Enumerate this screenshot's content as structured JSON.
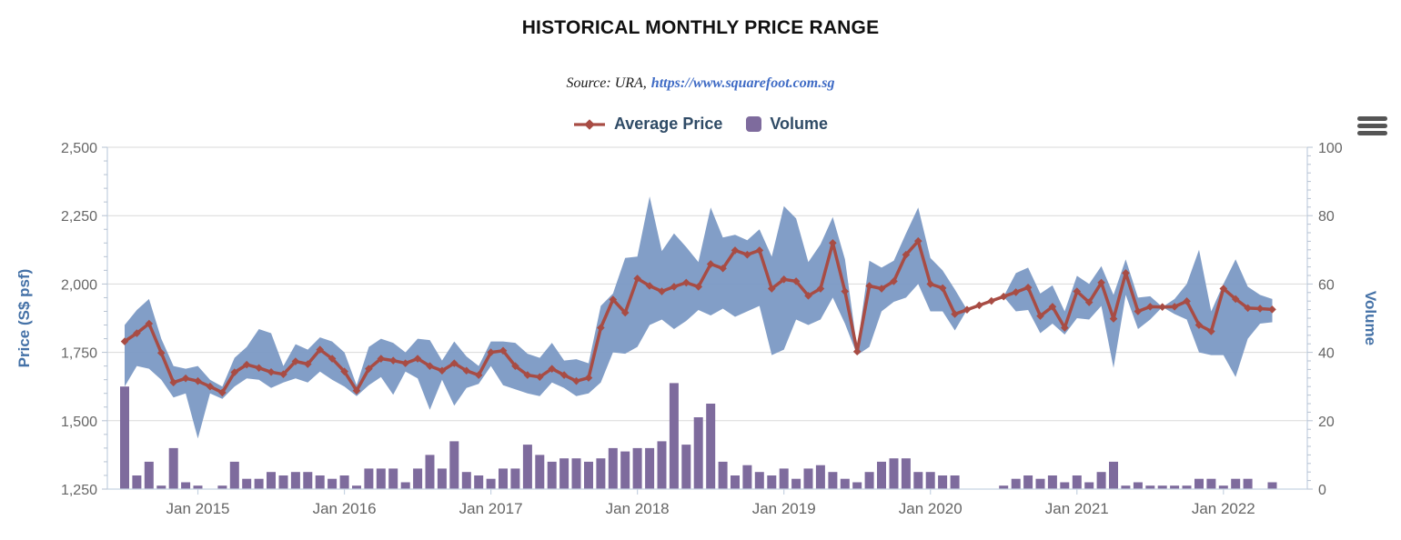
{
  "header": {
    "title": "HISTORICAL MONTHLY PRICE RANGE",
    "subtitle_prefix": "Source: URA,",
    "subtitle_link": "https://www.squarefoot.com.sg"
  },
  "legend": {
    "items": [
      {
        "label": "Average Price",
        "marker": "line-diamond",
        "color": "#a84c44"
      },
      {
        "label": "Volume",
        "marker": "rounded-square",
        "color": "#7e6b9d"
      }
    ]
  },
  "controls": {
    "export_menu_icon": "hamburger-menu"
  },
  "colors": {
    "band": "#7b99c4",
    "line": "#a84c44",
    "column": "#7e6b9d",
    "gridline": "#d9d9d9",
    "axis_line": "#c6d3e2",
    "tick_mark": "#b6c2d2",
    "tick_label": "#666666",
    "axis_title": "#4572a7"
  },
  "chart_data": {
    "type": "combo",
    "title": "HISTORICAL MONTHLY PRICE RANGE",
    "subtitle": "Source: URA, https://www.squarefoot.com.sg",
    "legend_position": "top",
    "grid": true,
    "x_tick_labels": [
      "Jan 2015",
      "Jan 2016",
      "Jan 2017",
      "Jan 2018",
      "Jan 2019",
      "Jan 2020",
      "Jan 2021",
      "Jan 2022"
    ],
    "y_left": {
      "title": "Price (S$ psf)",
      "min": 1250,
      "max": 2500,
      "tick_interval": 250,
      "tick_labels": [
        "1,250",
        "1,500",
        "1,750",
        "2,000",
        "2,250",
        "2,500"
      ]
    },
    "y_right": {
      "title": "Volume",
      "min": 0,
      "max": 100,
      "tick_interval": 20,
      "tick_labels": [
        "0",
        "20",
        "40",
        "60",
        "80",
        "100"
      ]
    },
    "months": [
      "Jul 2014",
      "Aug 2014",
      "Sep 2014",
      "Oct 2014",
      "Nov 2014",
      "Dec 2014",
      "Jan 2015",
      "Feb 2015",
      "Mar 2015",
      "Apr 2015",
      "May 2015",
      "Jun 2015",
      "Jul 2015",
      "Aug 2015",
      "Sep 2015",
      "Oct 2015",
      "Nov 2015",
      "Dec 2015",
      "Jan 2016",
      "Feb 2016",
      "Mar 2016",
      "Apr 2016",
      "May 2016",
      "Jun 2016",
      "Jul 2016",
      "Aug 2016",
      "Sep 2016",
      "Oct 2016",
      "Nov 2016",
      "Dec 2016",
      "Jan 2017",
      "Feb 2017",
      "Mar 2017",
      "Apr 2017",
      "May 2017",
      "Jun 2017",
      "Jul 2017",
      "Aug 2017",
      "Sep 2017",
      "Oct 2017",
      "Nov 2017",
      "Dec 2017",
      "Jan 2018",
      "Feb 2018",
      "Mar 2018",
      "Apr 2018",
      "May 2018",
      "Jun 2018",
      "Jul 2018",
      "Aug 2018",
      "Sep 2018",
      "Oct 2018",
      "Nov 2018",
      "Dec 2018",
      "Jan 2019",
      "Feb 2019",
      "Mar 2019",
      "Apr 2019",
      "May 2019",
      "Jun 2019",
      "Jul 2019",
      "Aug 2019",
      "Sep 2019",
      "Oct 2019",
      "Nov 2019",
      "Dec 2019",
      "Jan 2020",
      "Feb 2020",
      "Mar 2020",
      "Apr 2020",
      "May 2020",
      "Jun 2020",
      "Jul 2020",
      "Aug 2020",
      "Sep 2020",
      "Oct 2020",
      "Nov 2020",
      "Dec 2020",
      "Jan 2021",
      "Feb 2021",
      "Mar 2021",
      "Apr 2021",
      "May 2021",
      "Jun 2021",
      "Jul 2021",
      "Aug 2021",
      "Sep 2021",
      "Oct 2021",
      "Nov 2021",
      "Dec 2021",
      "Jan 2022",
      "Feb 2022",
      "Mar 2022",
      "Apr 2022",
      "May 2022"
    ],
    "series": [
      {
        "name": "Price Range",
        "type": "arearange",
        "color": "#7b99c4",
        "axis": "left",
        "min": [
          1625,
          1700,
          1690,
          1650,
          1585,
          1600,
          1435,
          1600,
          1580,
          1625,
          1655,
          1650,
          1620,
          1640,
          1655,
          1640,
          1680,
          1650,
          1625,
          1590,
          1630,
          1660,
          1595,
          1680,
          1655,
          1540,
          1650,
          1555,
          1620,
          1635,
          1700,
          1630,
          1615,
          1600,
          1590,
          1640,
          1620,
          1590,
          1600,
          1640,
          1750,
          1745,
          1770,
          1850,
          1870,
          1835,
          1865,
          1905,
          1885,
          1910,
          1880,
          1900,
          1920,
          1740,
          1760,
          1870,
          1850,
          1870,
          1950,
          1855,
          1740,
          1770,
          1900,
          1935,
          1950,
          2000,
          1900,
          1900,
          1830,
          1906,
          1922,
          1938,
          1954,
          1900,
          1905,
          1820,
          1855,
          1815,
          1875,
          1870,
          1920,
          1693,
          1960,
          1835,
          1870,
          1916,
          1890,
          1870,
          1750,
          1740,
          1740,
          1660,
          1800,
          1855,
          1860
        ],
        "max": [
          1850,
          1905,
          1945,
          1800,
          1700,
          1690,
          1700,
          1650,
          1625,
          1730,
          1770,
          1835,
          1820,
          1700,
          1780,
          1760,
          1805,
          1790,
          1750,
          1630,
          1770,
          1800,
          1785,
          1750,
          1800,
          1795,
          1720,
          1790,
          1735,
          1700,
          1790,
          1790,
          1785,
          1745,
          1730,
          1785,
          1720,
          1725,
          1710,
          1920,
          1965,
          2095,
          2100,
          2320,
          2120,
          2185,
          2135,
          2080,
          2280,
          2170,
          2180,
          2160,
          2200,
          2100,
          2285,
          2240,
          2080,
          2145,
          2245,
          2090,
          1765,
          2085,
          2060,
          2085,
          2185,
          2280,
          2095,
          2050,
          1980,
          1906,
          1922,
          1938,
          1954,
          2040,
          2060,
          1965,
          1995,
          1900,
          2030,
          2000,
          2065,
          1960,
          2090,
          1950,
          1955,
          1916,
          1945,
          2000,
          2125,
          1900,
          2000,
          2090,
          1990,
          1960,
          1945
        ]
      },
      {
        "name": "Average Price",
        "type": "line",
        "color": "#a84c44",
        "marker": "diamond",
        "axis": "left",
        "values": [
          1790,
          1820,
          1855,
          1748,
          1640,
          1655,
          1645,
          1625,
          1603,
          1677,
          1705,
          1693,
          1678,
          1670,
          1717,
          1707,
          1760,
          1727,
          1680,
          1610,
          1690,
          1727,
          1720,
          1710,
          1727,
          1700,
          1683,
          1710,
          1683,
          1667,
          1750,
          1756,
          1700,
          1667,
          1660,
          1690,
          1667,
          1645,
          1657,
          1840,
          1943,
          1895,
          2020,
          1993,
          1973,
          1990,
          2005,
          1990,
          2073,
          2057,
          2123,
          2107,
          2123,
          1983,
          2017,
          2010,
          1957,
          1983,
          2150,
          1973,
          1753,
          1993,
          1983,
          2010,
          2107,
          2157,
          2000,
          1985,
          1890,
          1906,
          1922,
          1938,
          1954,
          1970,
          1987,
          1883,
          1917,
          1840,
          1973,
          1933,
          2005,
          1873,
          2040,
          1900,
          1917,
          1916,
          1917,
          1937,
          1850,
          1827,
          1983,
          1945,
          1912,
          1910,
          1907
        ]
      },
      {
        "name": "Volume",
        "type": "column",
        "color": "#7e6b9d",
        "axis": "right",
        "values": [
          30,
          4,
          8,
          1,
          12,
          2,
          1,
          0,
          1,
          8,
          3,
          3,
          5,
          4,
          5,
          5,
          4,
          3,
          4,
          1,
          6,
          6,
          6,
          2,
          6,
          10,
          6,
          14,
          5,
          4,
          3,
          6,
          6,
          13,
          10,
          8,
          9,
          9,
          8,
          9,
          12,
          11,
          12,
          12,
          14,
          31,
          13,
          21,
          25,
          8,
          4,
          7,
          5,
          4,
          6,
          3,
          6,
          7,
          5,
          3,
          2,
          5,
          8,
          9,
          9,
          5,
          5,
          4,
          4,
          0,
          0,
          0,
          1,
          3,
          4,
          3,
          4,
          2,
          4,
          2,
          5,
          8,
          1,
          2,
          1,
          1,
          1,
          1,
          3,
          3,
          1,
          3,
          3,
          0,
          2
        ]
      }
    ]
  }
}
